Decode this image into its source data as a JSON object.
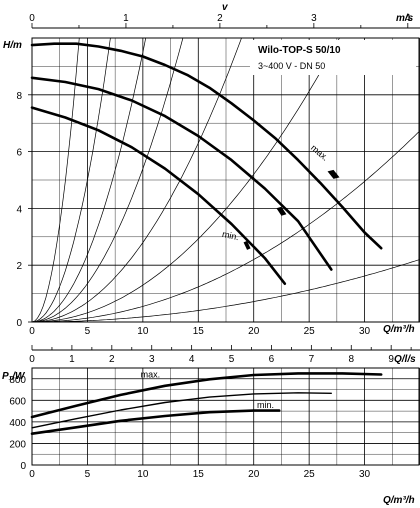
{
  "chart_data": [
    {
      "type": "line",
      "title": "Wilo-TOP-S 50/10",
      "subtitle": "3~400 V - DN 50",
      "ylabel": "H/m",
      "xlabel": "Q/m³/h",
      "xlim": [
        0,
        35
      ],
      "ylim": [
        0,
        10
      ],
      "x_ticks": [
        0,
        5,
        10,
        15,
        20,
        25,
        30,
        35
      ],
      "y_ticks": [
        0,
        2,
        4,
        6,
        8
      ],
      "top_axis": {
        "label_top": "v",
        "unit": "m/s",
        "ticks": [
          0,
          1,
          2,
          3,
          4
        ]
      },
      "series": [
        {
          "name": "max.",
          "x": [
            0,
            2,
            4,
            6,
            8,
            10,
            12,
            14,
            16,
            18,
            20,
            22,
            24,
            26,
            28,
            30,
            31.5
          ],
          "y": [
            9.75,
            9.8,
            9.8,
            9.7,
            9.55,
            9.35,
            9.05,
            8.7,
            8.25,
            7.7,
            7.1,
            6.45,
            5.7,
            4.9,
            4.05,
            3.15,
            2.6
          ]
        },
        {
          "name": "",
          "x": [
            0,
            3,
            6,
            9,
            12,
            15,
            18,
            21,
            24,
            27
          ],
          "y": [
            8.6,
            8.45,
            8.2,
            7.8,
            7.25,
            6.55,
            5.7,
            4.7,
            3.55,
            1.85
          ]
        },
        {
          "name": "min.",
          "x": [
            0,
            3,
            6,
            9,
            12,
            15,
            18,
            21,
            22.8
          ],
          "y": [
            7.55,
            7.2,
            6.75,
            6.15,
            5.4,
            4.5,
            3.45,
            2.25,
            1.35
          ]
        }
      ],
      "annotations": [
        "max.",
        "min."
      ]
    },
    {
      "type": "line",
      "ylabel": "P₁/W",
      "xlabel": "Q/m³/h",
      "xlim": [
        0,
        35
      ],
      "ylim": [
        0,
        900
      ],
      "x_ticks": [
        0,
        5,
        10,
        15,
        20,
        25,
        30,
        35
      ],
      "y_ticks": [
        0,
        200,
        400,
        600,
        800
      ],
      "top_axis": {
        "unit": "Q/l/s",
        "ticks": [
          0,
          1,
          2,
          3,
          4,
          5,
          6,
          7,
          8,
          9
        ]
      },
      "series": [
        {
          "name": "max.",
          "x": [
            0,
            4,
            8,
            12,
            16,
            20,
            24,
            28,
            31.5
          ],
          "y": [
            445,
            550,
            650,
            735,
            795,
            835,
            850,
            850,
            840
          ]
        },
        {
          "name": "",
          "x": [
            0,
            4,
            8,
            12,
            16,
            20,
            24,
            27
          ],
          "y": [
            345,
            430,
            510,
            580,
            630,
            660,
            670,
            665
          ]
        },
        {
          "name": "min.",
          "x": [
            0,
            4,
            8,
            12,
            16,
            20,
            22.3
          ],
          "y": [
            290,
            350,
            410,
            455,
            490,
            505,
            505
          ]
        }
      ],
      "annotations": [
        "max.",
        "min."
      ]
    }
  ]
}
